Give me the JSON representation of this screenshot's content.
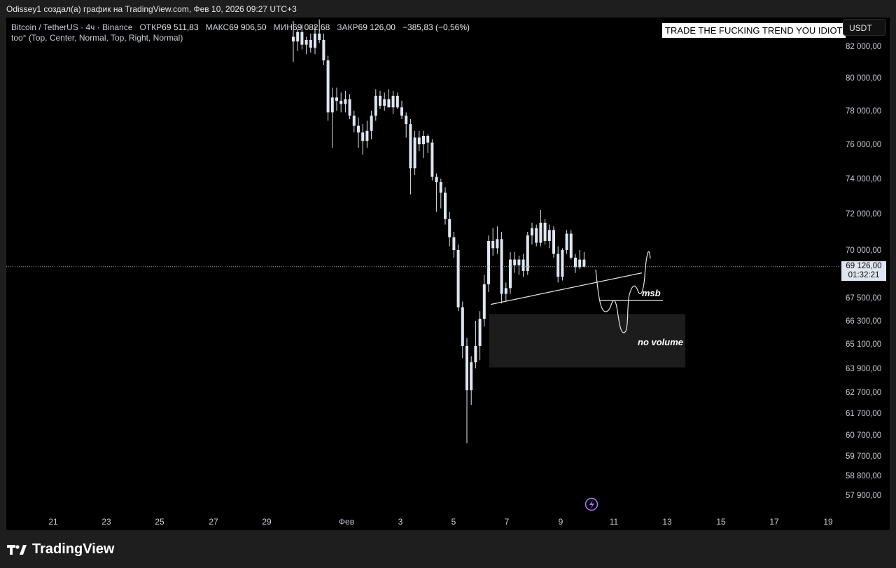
{
  "header": {
    "credit": "Odissey1 создал(а) график на TradingView.com, Фев 10, 2026 09:27 UTC+3"
  },
  "legend": {
    "symbol": "Bitcoin / TetherUS · 4ч · Binance",
    "open_label": "ОТКР",
    "open": "69 511,83",
    "high_label": "МАКС",
    "high": "69 906,50",
    "low_label": "МИН",
    "low": "69 082,68",
    "close_label": "ЗАКР",
    "close": "69 126,00",
    "change": "−385,83 (−0,56%)",
    "indicator": "too° (Top, Center, Normal, Top, Right, Normal)"
  },
  "note_box": "TRADE THE FUCKING TREND YOU IDIOT",
  "currency": "USDT",
  "price_badge": {
    "price": "69 126,00",
    "countdown": "01:32:21"
  },
  "annotations": {
    "msb": "msb",
    "no_volume": "no volume"
  },
  "logo_text": "TradingView",
  "colors": {
    "background": "#000000",
    "candle": "#dfe6ef",
    "accent": "#b07cff"
  },
  "chart_data": {
    "type": "candlestick",
    "timeframe": "4h",
    "y_ticks": [
      {
        "value": 82000,
        "label": "82 000,00"
      },
      {
        "value": 80000,
        "label": "80 000,00"
      },
      {
        "value": 78000,
        "label": "78 000,00"
      },
      {
        "value": 76000,
        "label": "76 000,00"
      },
      {
        "value": 74000,
        "label": "74 000,00"
      },
      {
        "value": 72000,
        "label": "72 000,00"
      },
      {
        "value": 70000,
        "label": "70 000,00"
      },
      {
        "value": 67500,
        "label": "67 500,00"
      },
      {
        "value": 66300,
        "label": "66 300,00"
      },
      {
        "value": 65100,
        "label": "65 100,00"
      },
      {
        "value": 63900,
        "label": "63 900,00"
      },
      {
        "value": 62700,
        "label": "62 700,00"
      },
      {
        "value": 61700,
        "label": "61 700,00"
      },
      {
        "value": 60700,
        "label": "60 700,00"
      },
      {
        "value": 59700,
        "label": "59 700,00"
      },
      {
        "value": 58800,
        "label": "58 800,00"
      },
      {
        "value": 57900,
        "label": "57 900,00"
      }
    ],
    "x_ticks": [
      "21",
      "23",
      "25",
      "27",
      "29",
      "Фев",
      "3",
      "5",
      "7",
      "9",
      "11",
      "13",
      "15",
      "17",
      "19"
    ],
    "x_start_label": "21",
    "x_end_label": "19",
    "last_price": 69126,
    "candles": [
      {
        "o": 82600,
        "h": 83600,
        "l": 81000,
        "c": 82300
      },
      {
        "o": 82300,
        "h": 83100,
        "l": 81700,
        "c": 82900
      },
      {
        "o": 82900,
        "h": 83400,
        "l": 81800,
        "c": 82100
      },
      {
        "o": 82100,
        "h": 82600,
        "l": 81500,
        "c": 82400
      },
      {
        "o": 82400,
        "h": 82800,
        "l": 81600,
        "c": 81900
      },
      {
        "o": 81900,
        "h": 83300,
        "l": 81500,
        "c": 82800
      },
      {
        "o": 82800,
        "h": 83700,
        "l": 82200,
        "c": 82400
      },
      {
        "o": 82400,
        "h": 82800,
        "l": 80800,
        "c": 81100
      },
      {
        "o": 81100,
        "h": 81400,
        "l": 77400,
        "c": 77900
      },
      {
        "o": 77900,
        "h": 79400,
        "l": 75800,
        "c": 78800
      },
      {
        "o": 78800,
        "h": 79400,
        "l": 78000,
        "c": 78600
      },
      {
        "o": 78600,
        "h": 79100,
        "l": 77900,
        "c": 78400
      },
      {
        "o": 78400,
        "h": 79200,
        "l": 77900,
        "c": 78700
      },
      {
        "o": 78700,
        "h": 79000,
        "l": 77500,
        "c": 77700
      },
      {
        "o": 77700,
        "h": 78000,
        "l": 76700,
        "c": 77100
      },
      {
        "o": 77100,
        "h": 77600,
        "l": 75800,
        "c": 76700
      },
      {
        "o": 76700,
        "h": 77200,
        "l": 75400,
        "c": 76200
      },
      {
        "o": 76200,
        "h": 77400,
        "l": 75800,
        "c": 76800
      },
      {
        "o": 76800,
        "h": 78000,
        "l": 76300,
        "c": 77700
      },
      {
        "o": 77700,
        "h": 79300,
        "l": 77400,
        "c": 78900
      },
      {
        "o": 78900,
        "h": 79200,
        "l": 78100,
        "c": 78300
      },
      {
        "o": 78300,
        "h": 79100,
        "l": 78000,
        "c": 78700
      },
      {
        "o": 78700,
        "h": 79300,
        "l": 78200,
        "c": 78200
      },
      {
        "o": 78200,
        "h": 79200,
        "l": 77800,
        "c": 78900
      },
      {
        "o": 78900,
        "h": 79100,
        "l": 78100,
        "c": 78200
      },
      {
        "o": 78200,
        "h": 78600,
        "l": 77500,
        "c": 77700
      },
      {
        "o": 77700,
        "h": 77900,
        "l": 76400,
        "c": 77200
      },
      {
        "o": 77200,
        "h": 77500,
        "l": 73100,
        "c": 74600
      },
      {
        "o": 74600,
        "h": 76800,
        "l": 74200,
        "c": 76400
      },
      {
        "o": 76400,
        "h": 76800,
        "l": 75600,
        "c": 76000
      },
      {
        "o": 76000,
        "h": 76800,
        "l": 75200,
        "c": 76500
      },
      {
        "o": 76500,
        "h": 76600,
        "l": 75500,
        "c": 76100
      },
      {
        "o": 76100,
        "h": 76300,
        "l": 73900,
        "c": 74100
      },
      {
        "o": 74100,
        "h": 74300,
        "l": 72100,
        "c": 73800
      },
      {
        "o": 73800,
        "h": 74000,
        "l": 72300,
        "c": 73200
      },
      {
        "o": 73200,
        "h": 73500,
        "l": 71400,
        "c": 71700
      },
      {
        "o": 71700,
        "h": 72100,
        "l": 70200,
        "c": 70700
      },
      {
        "o": 70700,
        "h": 71000,
        "l": 69600,
        "c": 70000
      },
      {
        "o": 70000,
        "h": 70300,
        "l": 66800,
        "c": 67000
      },
      {
        "o": 67000,
        "h": 67300,
        "l": 64400,
        "c": 65000
      },
      {
        "o": 65000,
        "h": 65400,
        "l": 60300,
        "c": 62800
      },
      {
        "o": 62800,
        "h": 64500,
        "l": 62100,
        "c": 64200
      },
      {
        "o": 64200,
        "h": 66300,
        "l": 63900,
        "c": 65000
      },
      {
        "o": 65000,
        "h": 66800,
        "l": 64300,
        "c": 66400
      },
      {
        "o": 66400,
        "h": 68700,
        "l": 66000,
        "c": 68200
      },
      {
        "o": 68200,
        "h": 70800,
        "l": 67800,
        "c": 70500
      },
      {
        "o": 70500,
        "h": 71200,
        "l": 69700,
        "c": 70100
      },
      {
        "o": 70100,
        "h": 71300,
        "l": 69800,
        "c": 70600
      },
      {
        "o": 70600,
        "h": 71000,
        "l": 67200,
        "c": 67700
      },
      {
        "o": 67700,
        "h": 68300,
        "l": 67300,
        "c": 68000
      },
      {
        "o": 68000,
        "h": 69900,
        "l": 67700,
        "c": 69500
      },
      {
        "o": 69500,
        "h": 69900,
        "l": 68800,
        "c": 69200
      },
      {
        "o": 69200,
        "h": 69700,
        "l": 68700,
        "c": 69500
      },
      {
        "o": 69500,
        "h": 69800,
        "l": 68600,
        "c": 68900
      },
      {
        "o": 68900,
        "h": 71000,
        "l": 68700,
        "c": 70800
      },
      {
        "o": 70800,
        "h": 71500,
        "l": 70300,
        "c": 71200
      },
      {
        "o": 71200,
        "h": 71400,
        "l": 70200,
        "c": 70400
      },
      {
        "o": 70400,
        "h": 72200,
        "l": 70200,
        "c": 71500
      },
      {
        "o": 71500,
        "h": 71700,
        "l": 70300,
        "c": 70500
      },
      {
        "o": 70500,
        "h": 71400,
        "l": 70100,
        "c": 71100
      },
      {
        "o": 71100,
        "h": 71300,
        "l": 69600,
        "c": 69800
      },
      {
        "o": 69800,
        "h": 70200,
        "l": 68300,
        "c": 68600
      },
      {
        "o": 68600,
        "h": 70100,
        "l": 68400,
        "c": 70000
      },
      {
        "o": 70000,
        "h": 71100,
        "l": 69800,
        "c": 70900
      },
      {
        "o": 70900,
        "h": 71100,
        "l": 69500,
        "c": 69600
      },
      {
        "o": 69600,
        "h": 69800,
        "l": 68800,
        "c": 69100
      },
      {
        "o": 69100,
        "h": 70000,
        "l": 69000,
        "c": 69500
      },
      {
        "o": 69500,
        "h": 69900,
        "l": 69080,
        "c": 69126
      }
    ]
  }
}
